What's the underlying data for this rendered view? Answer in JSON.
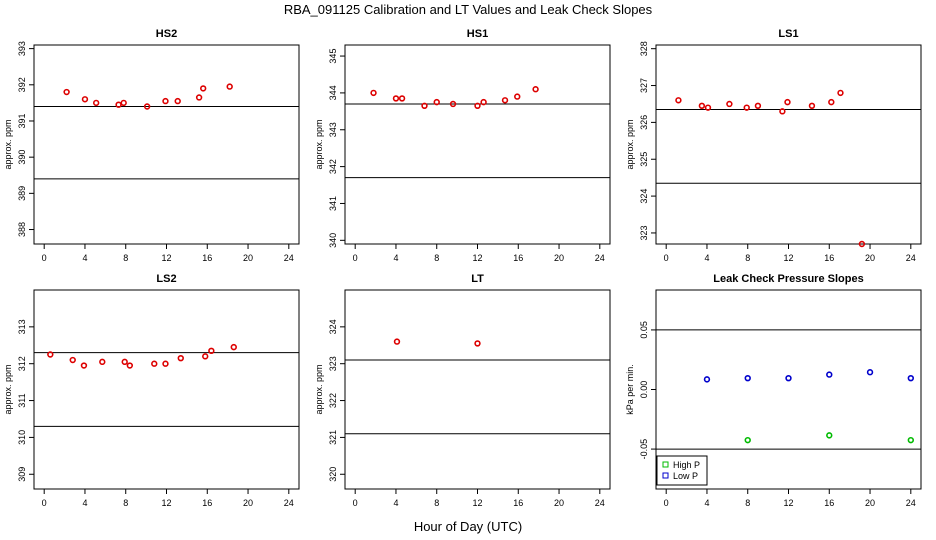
{
  "figure": {
    "title": "RBA_091125  Calibration and LT Values and Leak Check Slopes",
    "xlabel": "Hour of Day (UTC)"
  },
  "colors": {
    "calibration_points": "#dd0000",
    "high_p": "#00bb00",
    "low_p": "#0000cc",
    "reference_line": "#000000"
  },
  "chart_data": [
    {
      "type": "scatter",
      "title": "HS2",
      "ylabel": "approx. ppm",
      "xlim": [
        -1,
        25
      ],
      "ylim": [
        387.6,
        393.1
      ],
      "xticks": [
        0,
        4,
        8,
        12,
        16,
        20,
        24
      ],
      "yticks": [
        388,
        389,
        390,
        391,
        392,
        393
      ],
      "hlines": [
        391.4,
        389.4
      ],
      "series": [
        {
          "color": "#dd0000",
          "x": [
            2.2,
            4.0,
            5.1,
            7.3,
            7.8,
            10.1,
            11.9,
            13.1,
            15.2,
            15.6,
            18.2
          ],
          "y": [
            391.8,
            391.6,
            391.5,
            391.45,
            391.5,
            391.4,
            391.55,
            391.55,
            391.65,
            391.9,
            391.95
          ]
        }
      ]
    },
    {
      "type": "scatter",
      "title": "HS1",
      "ylabel": "approx. ppm",
      "xlim": [
        -1,
        25
      ],
      "ylim": [
        339.9,
        345.3
      ],
      "xticks": [
        0,
        4,
        8,
        12,
        16,
        20,
        24
      ],
      "yticks": [
        340,
        341,
        342,
        343,
        344,
        345
      ],
      "hlines": [
        343.7,
        341.7
      ],
      "series": [
        {
          "color": "#dd0000",
          "x": [
            1.8,
            4.0,
            4.6,
            6.8,
            8.0,
            9.6,
            12.0,
            12.6,
            14.7,
            15.9,
            17.7
          ],
          "y": [
            344.0,
            343.85,
            343.85,
            343.65,
            343.75,
            343.7,
            343.65,
            343.75,
            343.8,
            343.9,
            344.1
          ]
        }
      ]
    },
    {
      "type": "scatter",
      "title": "LS1",
      "ylabel": "approx. ppm",
      "xlim": [
        -1,
        25
      ],
      "ylim": [
        322.7,
        328.1
      ],
      "xticks": [
        0,
        4,
        8,
        12,
        16,
        20,
        24
      ],
      "yticks": [
        323,
        324,
        325,
        326,
        327,
        328
      ],
      "hlines": [
        326.35,
        324.35
      ],
      "series": [
        {
          "color": "#dd0000",
          "x": [
            1.2,
            3.5,
            4.1,
            6.2,
            7.9,
            9.0,
            11.4,
            11.9,
            14.3,
            16.2,
            17.1,
            19.2
          ],
          "y": [
            326.6,
            326.45,
            326.4,
            326.5,
            326.4,
            326.45,
            326.3,
            326.55,
            326.45,
            326.55,
            326.8,
            322.7
          ]
        }
      ]
    },
    {
      "type": "scatter",
      "title": "LS2",
      "ylabel": "approx. ppm",
      "xlim": [
        -1,
        25
      ],
      "ylim": [
        308.6,
        314.0
      ],
      "xticks": [
        0,
        4,
        8,
        12,
        16,
        20,
        24
      ],
      "yticks": [
        309,
        310,
        311,
        312,
        313
      ],
      "hlines": [
        312.3,
        310.3
      ],
      "series": [
        {
          "color": "#dd0000",
          "x": [
            0.6,
            2.8,
            3.9,
            5.7,
            7.9,
            8.4,
            10.8,
            11.9,
            13.4,
            15.8,
            16.4,
            18.6
          ],
          "y": [
            312.25,
            312.1,
            311.95,
            312.05,
            312.05,
            311.95,
            312.0,
            312.0,
            312.15,
            312.2,
            312.35,
            312.45
          ]
        }
      ]
    },
    {
      "type": "scatter",
      "title": "LT",
      "ylabel": "approx. ppm",
      "xlim": [
        -1,
        25
      ],
      "ylim": [
        319.6,
        325.0
      ],
      "xticks": [
        0,
        4,
        8,
        12,
        16,
        20,
        24
      ],
      "yticks": [
        320,
        321,
        322,
        323,
        324
      ],
      "hlines": [
        323.1,
        321.1
      ],
      "series": [
        {
          "color": "#dd0000",
          "x": [
            4.1,
            12.0
          ],
          "y": [
            323.6,
            323.55
          ]
        }
      ]
    },
    {
      "type": "scatter",
      "title": "Leak Check Pressure Slopes",
      "ylabel": "kPa per min.",
      "xlim": [
        -1,
        25
      ],
      "ylim": [
        -0.0835,
        0.0835
      ],
      "xticks": [
        0,
        4,
        8,
        12,
        16,
        20,
        24
      ],
      "yticks": [
        -0.05,
        0.0,
        0.05
      ],
      "yticklabels": [
        "-0.05",
        "0.00",
        "0.05"
      ],
      "hlines": [
        0.05,
        -0.05
      ],
      "legend": {
        "position": "bottom-left",
        "entries": [
          "High P",
          "Low P"
        ]
      },
      "series": [
        {
          "name": "High P",
          "color": "#00bb00",
          "x": [
            8,
            16,
            24
          ],
          "y": [
            -0.0425,
            -0.0385,
            -0.0425
          ]
        },
        {
          "name": "Low P",
          "color": "#0000cc",
          "x": [
            4,
            8,
            12,
            16,
            20,
            24
          ],
          "y": [
            0.0085,
            0.0095,
            0.0095,
            0.0125,
            0.0145,
            0.0095
          ]
        }
      ]
    }
  ]
}
